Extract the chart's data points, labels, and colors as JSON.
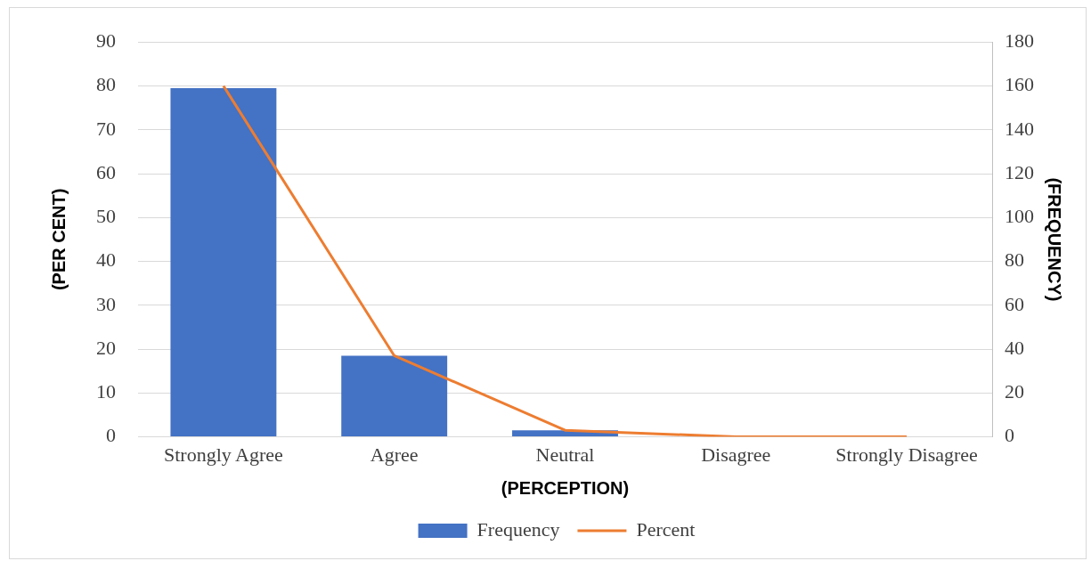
{
  "chart_data": {
    "type": "bar",
    "xlabel": "(PERCEPTION)",
    "ylabel": "(PER CENT)",
    "y2label": "(FREQUENCY)",
    "categories": [
      "Strongly Agree",
      "Agree",
      "Neutral",
      "Disagree",
      "Strongly Disagree"
    ],
    "series": [
      {
        "name": "Frequency",
        "color": "#4472c4",
        "values": [
          79.5,
          18.5,
          1.5,
          0,
          0
        ]
      },
      {
        "name": "Percent",
        "type": "line",
        "axis": "y2",
        "color": "#ed7d31",
        "values": [
          160,
          37,
          3,
          0,
          0
        ]
      }
    ],
    "ylim": [
      0,
      90
    ],
    "yticks": [
      0,
      10,
      20,
      30,
      40,
      50,
      60,
      70,
      80,
      90
    ],
    "y2lim": [
      0,
      180
    ],
    "y2ticks": [
      0,
      20,
      40,
      60,
      80,
      100,
      120,
      140,
      160,
      180
    ],
    "grid": "y",
    "legend": "bottom",
    "marker": "none"
  }
}
